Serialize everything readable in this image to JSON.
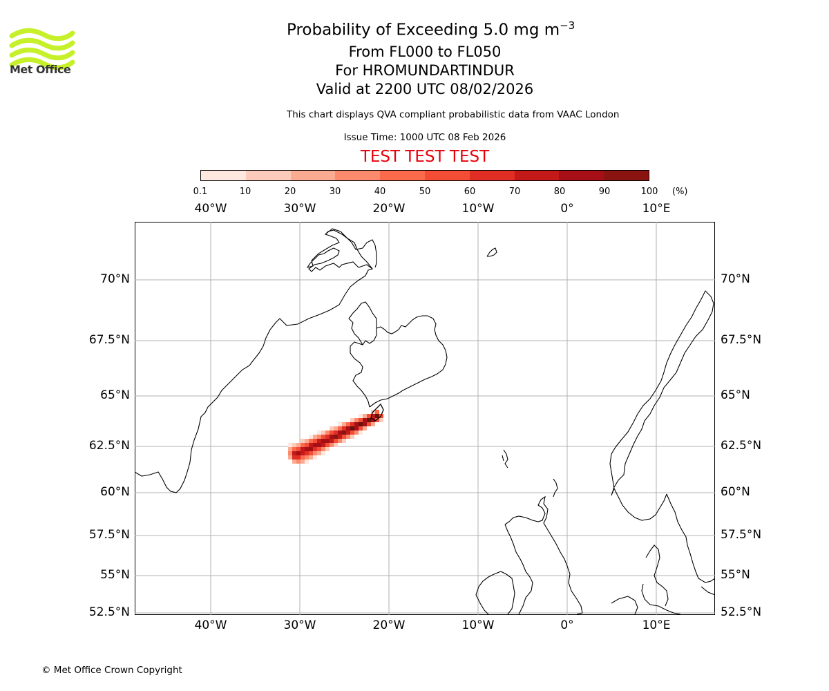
{
  "header": {
    "title_prefix": "Probability of Exceeding 5.0 mg m",
    "title_exp": "−3",
    "level_range": "From FL000 to FL050",
    "volcano": "For HROMUNDARTINDUR",
    "valid": "Valid at 2200 UTC 08/02/2026",
    "description": "This chart displays QVA compliant probabilistic data from VAAC London",
    "issue_time": "Issue Time: 1000 UTC 08 Feb 2026",
    "test_banner": "TEST TEST TEST",
    "test_color": "#e8000b"
  },
  "logo": {
    "text": "Met Office",
    "icon": "met-office-waves-logo",
    "color": "#c6f02a"
  },
  "colorbar": {
    "ticks": [
      "0.1",
      "10",
      "20",
      "30",
      "40",
      "50",
      "60",
      "70",
      "80",
      "90",
      "100"
    ],
    "unit": "(%)",
    "colors": [
      "#fee8e0",
      "#fdcbbb",
      "#fcab93",
      "#fc8a6c",
      "#fb6a4a",
      "#f44d36",
      "#e02e24",
      "#c31919",
      "#a50f15",
      "#8a1410",
      "#67130c"
    ]
  },
  "map": {
    "lon_labels": [
      "40°W",
      "30°W",
      "20°W",
      "10°W",
      "0°",
      "10°E"
    ],
    "lat_labels": [
      "70°N",
      "67.5°N",
      "65°N",
      "62.5°N",
      "60°N",
      "57.5°N",
      "55°N",
      "52.5°N"
    ],
    "probability_plume": "ash probability field southwest of Iceland, highest near the volcano"
  },
  "footer": {
    "copyright": "© Met Office Crown Copyright"
  }
}
